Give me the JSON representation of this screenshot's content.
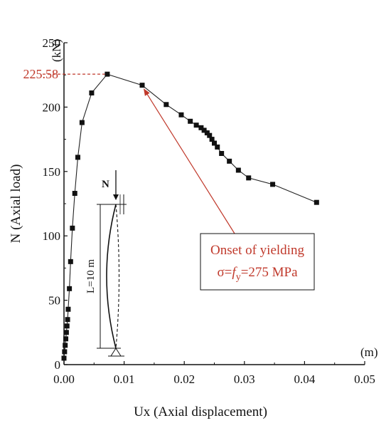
{
  "chart_data": {
    "type": "line",
    "xlabel": "Ux (Axial displacement)",
    "ylabel": "N (Axial load)",
    "x_unit": "(m)",
    "y_unit": "(kN)",
    "xlim": [
      0,
      0.05
    ],
    "ylim": [
      0,
      250
    ],
    "x_ticks": [
      "0.00",
      "0.01",
      "0.02",
      "0.03",
      "0.04",
      "0.05"
    ],
    "y_ticks": [
      "0",
      "50",
      "100",
      "150",
      "200",
      "250"
    ],
    "series": [
      {
        "x": [
          0.0,
          0.0001,
          0.0002,
          0.0003,
          0.0004,
          0.0005,
          0.0006,
          0.0007,
          0.0009,
          0.0011,
          0.0014,
          0.0018,
          0.0023,
          0.003,
          0.0046,
          0.0072,
          0.013,
          0.017,
          0.0195,
          0.021,
          0.022,
          0.0228,
          0.0233,
          0.0238,
          0.0242,
          0.0246,
          0.025,
          0.0255,
          0.0262,
          0.0275,
          0.029,
          0.0307,
          0.0347,
          0.042
        ],
        "y": [
          5,
          10,
          15,
          20,
          25,
          30,
          35,
          43,
          59,
          80,
          106,
          133,
          161,
          188,
          211,
          225.58,
          217,
          202,
          194,
          189,
          186,
          184,
          182,
          180,
          178,
          175,
          172,
          169,
          164,
          158,
          151,
          145,
          140,
          126
        ]
      }
    ],
    "peak": {
      "value": "225.58",
      "x": 0.0072,
      "y": 225.58,
      "color": "#c0392b"
    },
    "annotation": {
      "line1": "Onset of yielding",
      "line2_prefix": "σ=",
      "line2_f": "f",
      "line2_sub": "y",
      "line2_suffix": "=275 MPa",
      "target_x": 0.0133,
      "target_y": 214,
      "color": "#c0392b"
    },
    "inset": {
      "load_label": "N",
      "length_label": "L=10 m"
    },
    "grid": false,
    "legend": "none"
  }
}
